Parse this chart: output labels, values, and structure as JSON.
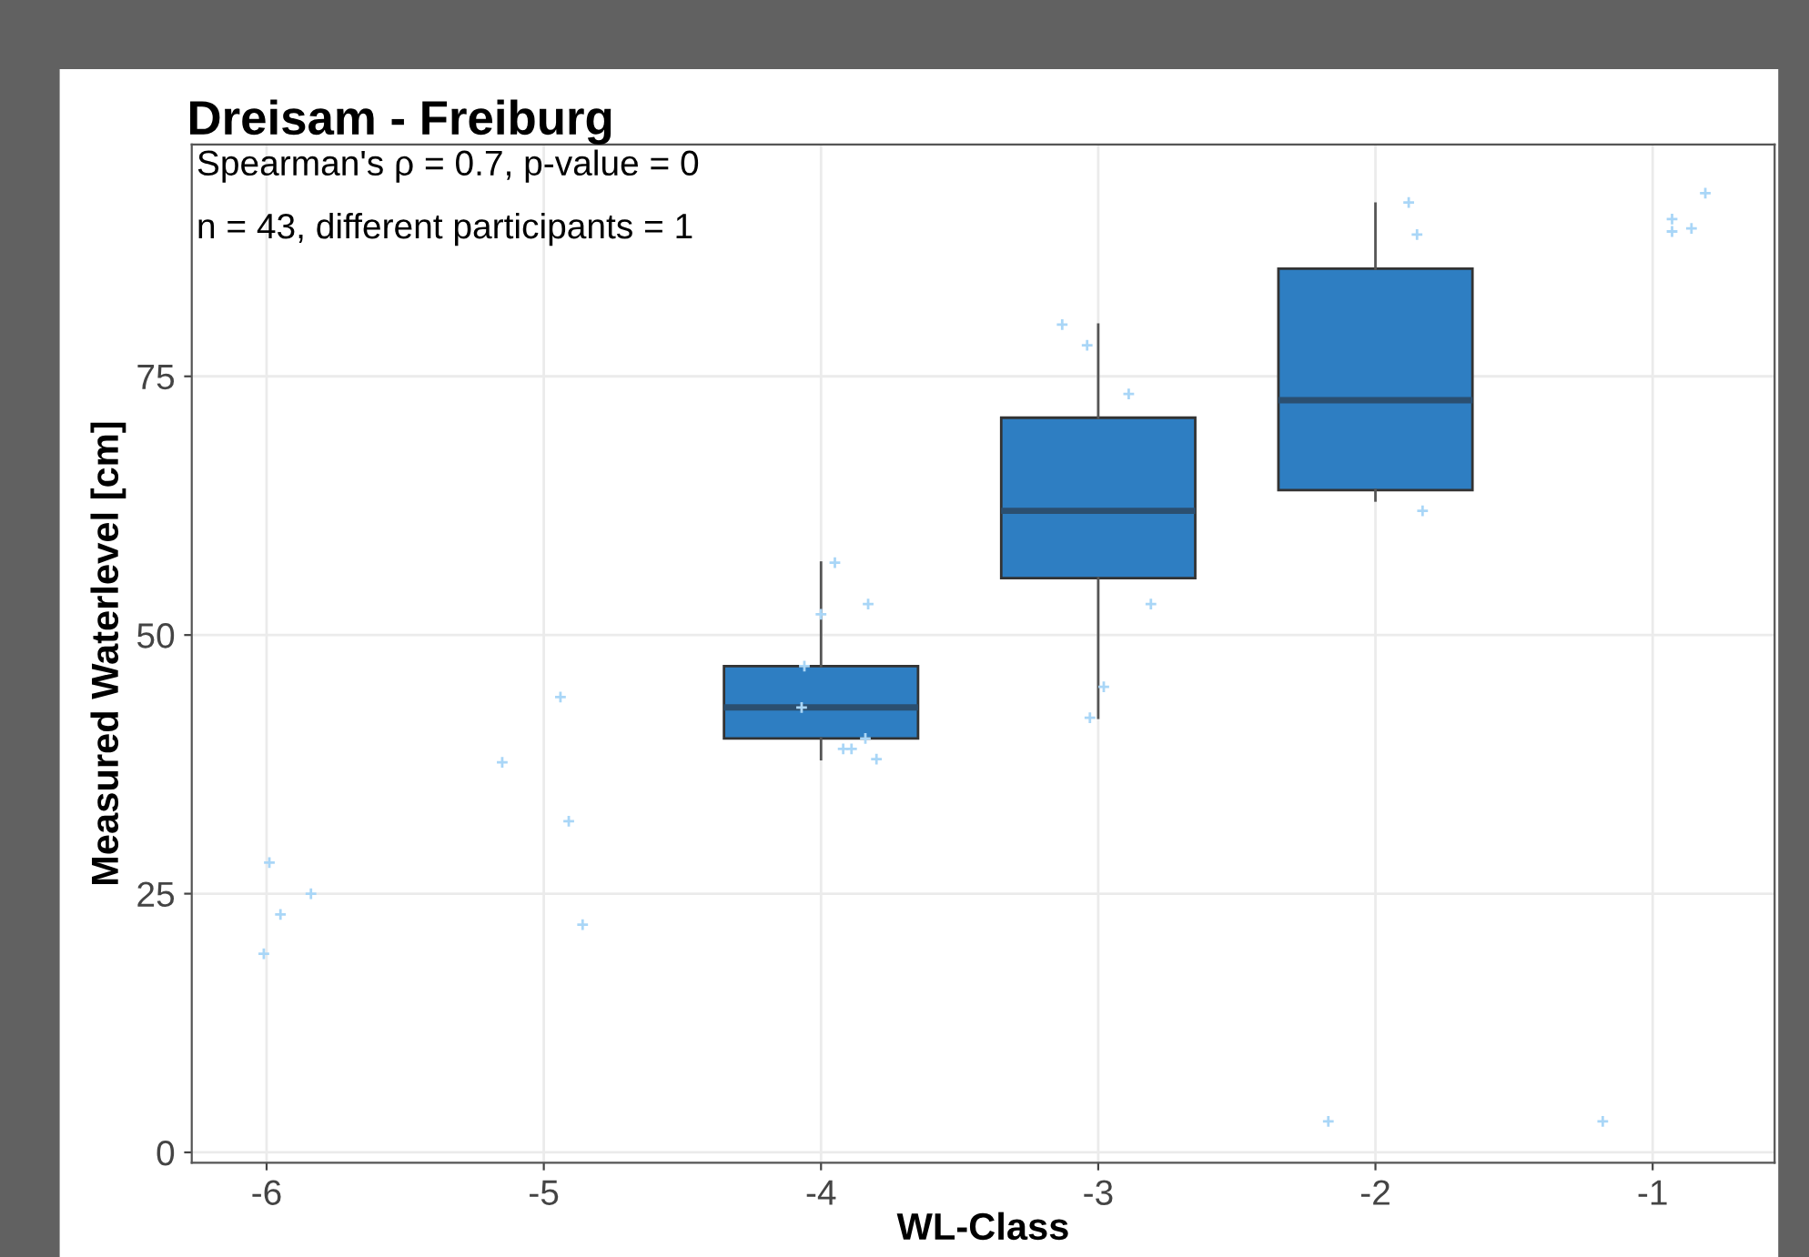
{
  "chart_data": {
    "type": "box",
    "title": "Dreisam - Freiburg",
    "xlabel": "WL-Class",
    "ylabel": "Measured Waterlevel [cm]",
    "annotations": [
      "Spearman's ρ = 0.7, p-value = 0",
      "n = 43, different participants = 1"
    ],
    "x": [
      -4,
      -3,
      -2
    ],
    "color": "#2e7ec2",
    "boxes": [
      {
        "low": 38,
        "q1": 40,
        "median": 43,
        "q3": 47,
        "high": 57
      },
      {
        "low": 42,
        "q1": 55.5,
        "median": 62,
        "q3": 71,
        "high": 80
      },
      {
        "low": 63,
        "q1": 64,
        "median": 72.7,
        "q3": 85.4,
        "high": 91.7
      }
    ],
    "series": [
      {
        "type": "scatter",
        "color": "#a9d6f7",
        "x": [
          -5.99,
          -5.95,
          -5.84,
          -6.01,
          -5.15,
          -4.94,
          -4.91,
          -4.86,
          -3.95,
          -3.83,
          -4.0,
          -4.06,
          -4.07,
          -3.92,
          -3.89,
          -3.84,
          -3.8,
          -3.13,
          -3.04,
          -2.89,
          -2.81,
          -2.98,
          -3.03,
          -1.88,
          -1.85,
          -1.83,
          -2.17,
          -1.18,
          -0.81,
          -0.93,
          -0.93,
          -0.86
        ],
        "values": [
          28,
          23,
          25,
          19.2,
          37.7,
          44,
          32,
          22,
          57,
          53,
          52,
          47,
          43,
          39,
          39,
          40,
          38,
          80,
          78,
          73.3,
          53,
          45,
          42,
          91.8,
          88.7,
          62,
          3,
          3,
          92.7,
          90.2,
          89,
          89.3
        ]
      }
    ],
    "xlim": [
      -6.27,
      -0.56
    ],
    "ylim": [
      -1,
      97.4
    ],
    "xticks": [
      -6,
      -5,
      -4,
      -3,
      -2,
      -1
    ],
    "yticks": [
      0,
      25,
      50,
      75
    ],
    "grid": true,
    "marker": "cross"
  }
}
